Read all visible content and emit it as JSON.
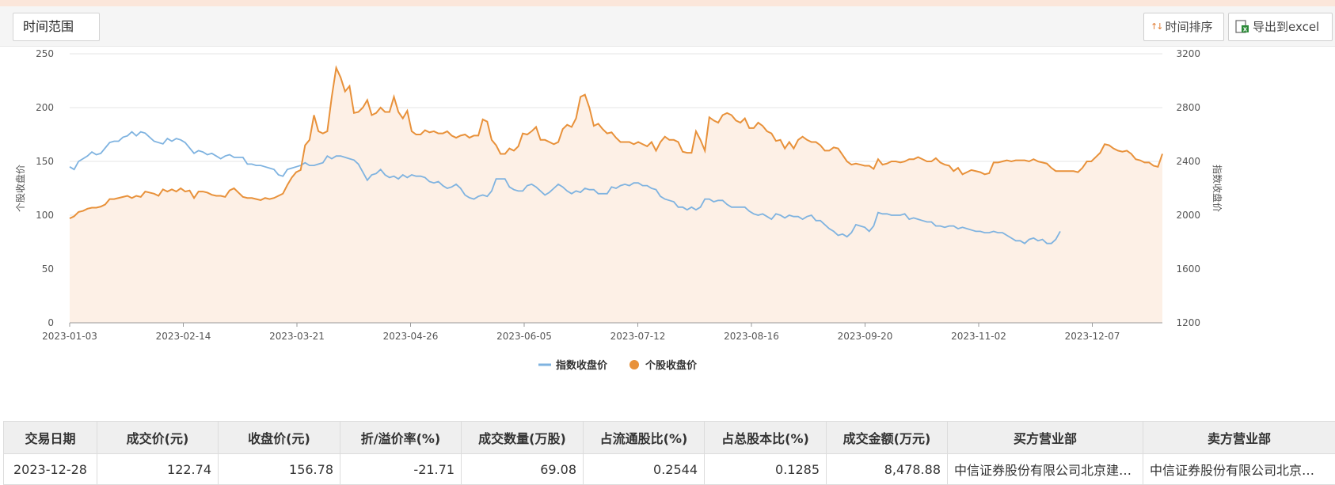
{
  "toolbar": {
    "time_range_label": "时间范围",
    "sort_label": "时间排序",
    "export_label": "导出到excel"
  },
  "colors": {
    "index_line": "#7fb3e0",
    "stock_line": "#e8913a",
    "stock_fill": "#fdf0e6",
    "grid": "#e6e6e6"
  },
  "chart_data": {
    "type": "line",
    "x_ticks": [
      "2023-01-03",
      "2023-02-14",
      "2023-03-21",
      "2023-04-26",
      "2023-06-05",
      "2023-07-12",
      "2023-08-16",
      "2023-09-20",
      "2023-11-02",
      "2023-12-07"
    ],
    "ylabel_left": "个股收盘价",
    "ylabel_right": "指数收盘价",
    "ylim_left": [
      0,
      250
    ],
    "ylim_right": [
      1200,
      3200
    ],
    "yticks_left": [
      0,
      50,
      100,
      150,
      200,
      250
    ],
    "yticks_right": [
      1200,
      1600,
      2000,
      2400,
      2800,
      3200
    ],
    "legend_position": "bottom-center",
    "series": [
      {
        "name": "指数收盘价",
        "axis": "right",
        "values": [
          2360,
          2340,
          2400,
          2420,
          2440,
          2470,
          2450,
          2460,
          2500,
          2540,
          2550,
          2550,
          2580,
          2590,
          2620,
          2590,
          2620,
          2610,
          2580,
          2550,
          2540,
          2530,
          2570,
          2550,
          2570,
          2560,
          2540,
          2500,
          2460,
          2480,
          2470,
          2450,
          2460,
          2440,
          2420,
          2440,
          2450,
          2430,
          2430,
          2430,
          2380,
          2380,
          2370,
          2370,
          2360,
          2350,
          2340,
          2300,
          2290,
          2340,
          2350,
          2360,
          2370,
          2390,
          2370,
          2370,
          2380,
          2390,
          2440,
          2420,
          2440,
          2440,
          2430,
          2420,
          2410,
          2380,
          2320,
          2260,
          2300,
          2310,
          2340,
          2300,
          2280,
          2290,
          2270,
          2300,
          2280,
          2300,
          2290,
          2290,
          2280,
          2250,
          2240,
          2250,
          2220,
          2200,
          2210,
          2230,
          2200,
          2150,
          2130,
          2120,
          2140,
          2150,
          2140,
          2180,
          2270,
          2270,
          2270,
          2210,
          2190,
          2180,
          2180,
          2220,
          2230,
          2210,
          2180,
          2150,
          2170,
          2200,
          2230,
          2210,
          2180,
          2160,
          2180,
          2170,
          2200,
          2190,
          2190,
          2160,
          2160,
          2160,
          2210,
          2200,
          2220,
          2230,
          2220,
          2240,
          2240,
          2220,
          2220,
          2200,
          2190,
          2140,
          2120,
          2110,
          2100,
          2060,
          2060,
          2040,
          2060,
          2040,
          2060,
          2120,
          2120,
          2100,
          2110,
          2110,
          2080,
          2060,
          2060,
          2060,
          2060,
          2030,
          2010,
          2000,
          2010,
          1990,
          1970,
          2010,
          2000,
          1980,
          2000,
          1990,
          1990,
          1970,
          1990,
          2000,
          1960,
          1960,
          1930,
          1900,
          1880,
          1850,
          1860,
          1840,
          1870,
          1930,
          1920,
          1910,
          1880,
          1920,
          2020,
          2010,
          2010,
          2000,
          2000,
          2000,
          2010,
          1970,
          1980,
          1970,
          1960,
          1950,
          1950,
          1920,
          1920,
          1910,
          1920,
          1920,
          1900,
          1910,
          1900,
          1890,
          1880,
          1880,
          1870,
          1870,
          1880,
          1870,
          1870,
          1850,
          1830,
          1810,
          1810,
          1790,
          1820,
          1830,
          1810,
          1820,
          1790,
          1790,
          1820,
          1880
        ]
      },
      {
        "name": "个股收盘价",
        "axis": "left",
        "values": [
          97,
          99,
          103,
          104,
          106,
          107,
          107,
          108,
          110,
          115,
          115,
          116,
          117,
          118,
          116,
          118,
          117,
          122,
          121,
          120,
          118,
          124,
          122,
          124,
          122,
          125,
          122,
          123,
          116,
          122,
          122,
          121,
          119,
          118,
          118,
          117,
          123,
          125,
          121,
          117,
          116,
          116,
          115,
          114,
          116,
          115,
          116,
          118,
          120,
          128,
          135,
          140,
          142,
          165,
          170,
          193,
          178,
          176,
          178,
          210,
          237,
          228,
          215,
          220,
          195,
          196,
          200,
          207,
          193,
          195,
          200,
          196,
          196,
          210,
          196,
          190,
          197,
          178,
          175,
          175,
          179,
          177,
          178,
          176,
          176,
          178,
          174,
          172,
          174,
          175,
          172,
          174,
          174,
          189,
          187,
          170,
          165,
          157,
          157,
          162,
          160,
          164,
          176,
          175,
          178,
          182,
          170,
          170,
          168,
          166,
          168,
          180,
          184,
          182,
          190,
          210,
          212,
          200,
          183,
          185,
          180,
          176,
          177,
          172,
          168,
          168,
          168,
          166,
          168,
          166,
          164,
          168,
          160,
          168,
          173,
          170,
          170,
          168,
          159,
          158,
          158,
          178,
          170,
          160,
          191,
          188,
          186,
          193,
          195,
          193,
          188,
          186,
          190,
          181,
          181,
          186,
          183,
          178,
          176,
          169,
          170,
          162,
          168,
          162,
          170,
          173,
          170,
          168,
          168,
          165,
          160,
          160,
          163,
          162,
          156,
          150,
          147,
          148,
          147,
          146,
          146,
          143,
          152,
          147,
          148,
          150,
          150,
          149,
          150,
          152,
          152,
          154,
          152,
          150,
          150,
          153,
          149,
          147,
          146,
          141,
          144,
          138,
          140,
          142,
          141,
          140,
          138,
          139,
          149,
          149,
          150,
          151,
          150,
          151,
          151,
          151,
          150,
          152,
          150,
          149,
          148,
          144,
          141,
          141,
          141,
          141,
          141,
          140,
          144,
          150,
          150,
          154,
          158,
          166,
          165,
          162,
          160,
          159,
          160,
          157,
          152,
          151,
          149,
          149,
          146,
          145,
          157
        ]
      }
    ]
  },
  "legend": {
    "index": "指数收盘价",
    "stock": "个股收盘价"
  },
  "table": {
    "headers": [
      "交易日期",
      "成交价(元)",
      "收盘价(元)",
      "折/溢价率(%)",
      "成交数量(万股)",
      "占流通股比(%)",
      "占总股本比(%)",
      "成交金额(万元)",
      "买方营业部",
      "卖方营业部"
    ],
    "rows": [
      [
        "2023-12-28",
        "122.74",
        "156.78",
        "-21.71",
        "69.08",
        "0.2544",
        "0.1285",
        "8,478.88",
        "中信证券股份有限公司北京建…",
        "中信证券股份有限公司北京…"
      ]
    ]
  }
}
